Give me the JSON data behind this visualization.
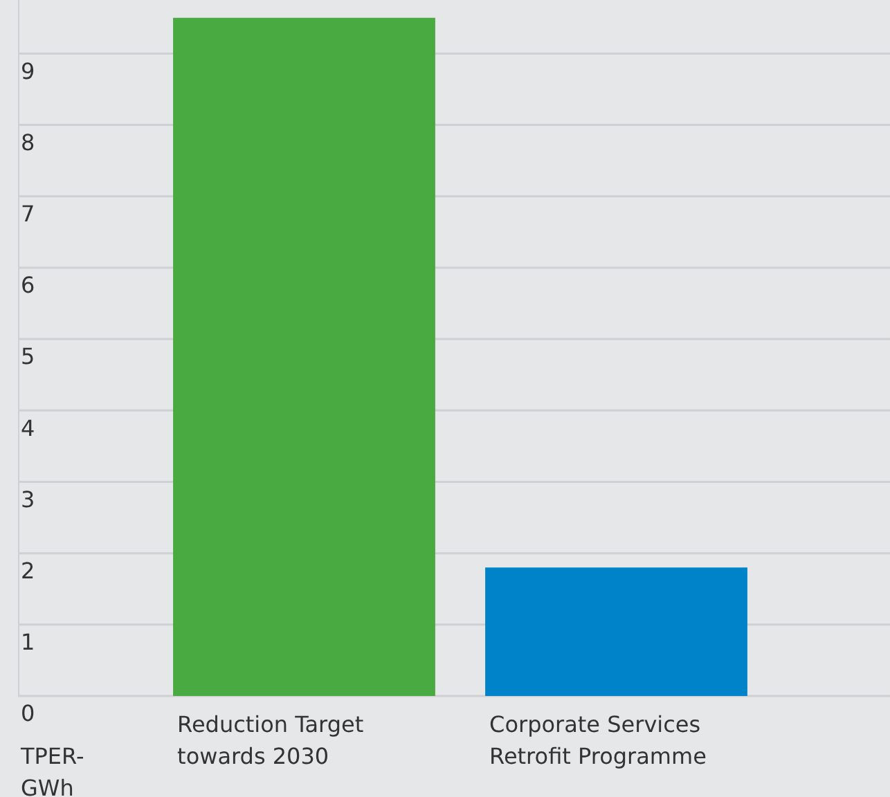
{
  "chart_data": {
    "type": "bar",
    "annotations": [
      "TPER-GWh"
    ],
    "categories": [
      "Reduction Target towards 2030",
      "Corporate Services Retrofit Programme"
    ],
    "values": [
      9.5,
      1.8
    ],
    "colors": [
      "#4aaa42",
      "#0083c9"
    ],
    "ylim": [
      0,
      9.75
    ],
    "yticks": [
      0,
      1,
      2,
      3,
      4,
      5,
      6,
      7,
      8,
      9
    ],
    "grid": "y",
    "legend": false
  }
}
